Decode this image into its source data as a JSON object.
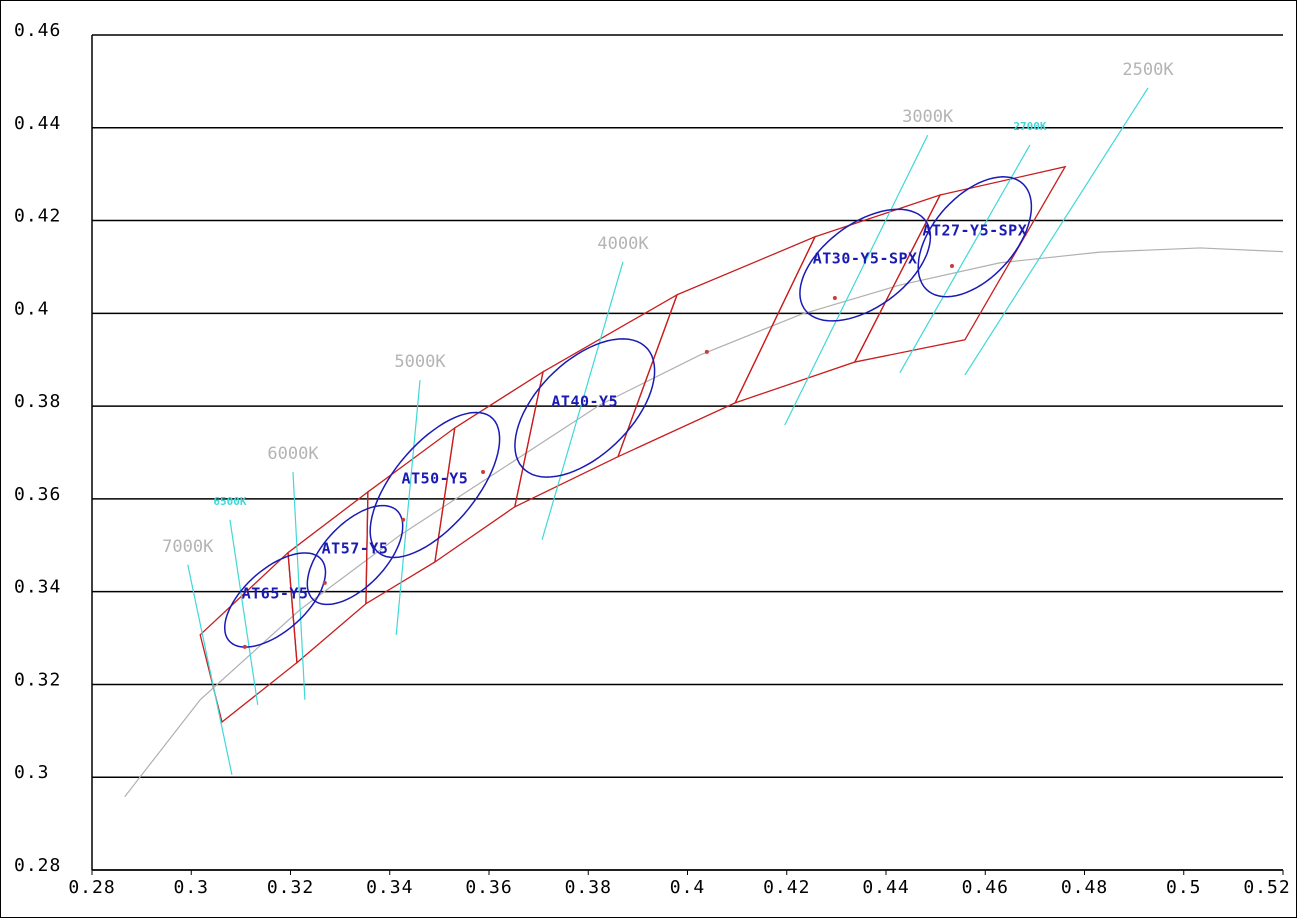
{
  "chart_data": {
    "type": "chromaticity",
    "xlim": [
      0.28,
      0.52
    ],
    "ylim": [
      0.28,
      0.46
    ],
    "xticks": [
      0.28,
      0.3,
      0.32,
      0.34,
      0.36,
      0.38,
      0.4,
      0.42,
      0.44,
      0.46,
      0.48,
      0.5,
      0.52
    ],
    "yticks": [
      0.28,
      0.3,
      0.32,
      0.34,
      0.36,
      0.38,
      0.4,
      0.42,
      0.44,
      0.46
    ],
    "grid": true,
    "planckian": {
      "color": "#b0b0b0",
      "x": [
        0.2866,
        0.3018,
        0.3219,
        0.3421,
        0.3622,
        0.3824,
        0.4025,
        0.4227,
        0.4428,
        0.463,
        0.4831,
        0.5033,
        0.52
      ],
      "y": [
        0.2958,
        0.3167,
        0.3361,
        0.3522,
        0.3662,
        0.3803,
        0.391,
        0.3997,
        0.4061,
        0.4109,
        0.4132,
        0.4141,
        0.4133
      ]
    },
    "isotherms": [
      {
        "label": "7000K",
        "color": "#40d8d8",
        "label_color": "#b4b4b4",
        "x": [
          0.2993,
          0.3082
        ],
        "y": [
          0.3458,
          0.3005
        ]
      },
      {
        "label": "6500K",
        "color": "#40d8d8",
        "label_color": "#40d8d8",
        "x": [
          0.3078,
          0.3134
        ],
        "y": [
          0.3555,
          0.3156
        ]
      },
      {
        "label": "6000K",
        "color": "#40d8d8",
        "label_color": "#b4b4b4",
        "x": [
          0.3205,
          0.3229
        ],
        "y": [
          0.3658,
          0.3167
        ]
      },
      {
        "label": "5000K",
        "color": "#40d8d8",
        "label_color": "#b4b4b4",
        "x": [
          0.3461,
          0.3413
        ],
        "y": [
          0.3856,
          0.3307
        ]
      },
      {
        "label": "4000K",
        "color": "#40d8d8",
        "label_color": "#b4b4b4",
        "x": [
          0.387,
          0.3707
        ],
        "y": [
          0.4111,
          0.3512
        ]
      },
      {
        "label": "3000K",
        "color": "#40d8d8",
        "label_color": "#b4b4b4",
        "x": [
          0.4484,
          0.4196
        ],
        "y": [
          0.4384,
          0.3759
        ]
      },
      {
        "label": "2700K",
        "color": "#40d8d8",
        "label_color": "#40d8d8",
        "x": [
          0.469,
          0.4428
        ],
        "y": [
          0.4363,
          0.3872
        ]
      },
      {
        "label": "2500K",
        "color": "#40d8d8",
        "label_color": "#b4b4b4",
        "x": [
          0.4928,
          0.4559
        ],
        "y": [
          0.4486,
          0.3867
        ]
      }
    ],
    "bins": [
      {
        "color": "#c81e1e",
        "x": [
          0.3018,
          0.3195,
          0.3213,
          0.3062
        ],
        "y": [
          0.3307,
          0.3484,
          0.3247,
          0.3119
        ]
      },
      {
        "color": "#c81e1e",
        "x": [
          0.3195,
          0.3356,
          0.3352,
          0.3213
        ],
        "y": [
          0.3484,
          0.3615,
          0.3374,
          0.3247
        ]
      },
      {
        "color": "#c81e1e",
        "x": [
          0.3356,
          0.3531,
          0.3491,
          0.3352
        ],
        "y": [
          0.3615,
          0.3753,
          0.3464,
          0.3374
        ]
      },
      {
        "color": "#c81e1e",
        "x": [
          0.3531,
          0.3709,
          0.3652,
          0.3491
        ],
        "y": [
          0.3753,
          0.3874,
          0.3583,
          0.3464
        ]
      },
      {
        "color": "#c81e1e",
        "x": [
          0.3709,
          0.3979,
          0.386,
          0.3652
        ],
        "y": [
          0.3874,
          0.404,
          0.3691,
          0.3583
        ]
      },
      {
        "color": "#c81e1e",
        "x": [
          0.3979,
          0.4257,
          0.4096,
          0.386
        ],
        "y": [
          0.404,
          0.4165,
          0.3807,
          0.3691
        ]
      },
      {
        "color": "#c81e1e",
        "x": [
          0.4257,
          0.4509,
          0.4337,
          0.4096
        ],
        "y": [
          0.4165,
          0.4255,
          0.3895,
          0.3807
        ]
      },
      {
        "color": "#c81e1e",
        "x": [
          0.4509,
          0.4761,
          0.4559,
          0.4337
        ],
        "y": [
          0.4255,
          0.4316,
          0.3943,
          0.3895
        ]
      }
    ],
    "ellipses": [
      {
        "label": "AT65-Y5",
        "color": "#1a1ab4",
        "cx": 0.3169,
        "cy": 0.3382,
        "a": 0.0128,
        "b": 0.0065,
        "angle": 45
      },
      {
        "label": "AT57-Y5",
        "color": "#1a1ab4",
        "cx": 0.333,
        "cy": 0.3479,
        "a": 0.0128,
        "b": 0.0065,
        "angle": 50
      },
      {
        "label": "AT50-Y5",
        "color": "#1a1ab4",
        "cx": 0.3491,
        "cy": 0.363,
        "a": 0.0185,
        "b": 0.0085,
        "angle": 53
      },
      {
        "label": "AT40-Y5",
        "color": "#1a1ab4",
        "cx": 0.3793,
        "cy": 0.3796,
        "a": 0.018,
        "b": 0.0098,
        "angle": 48
      },
      {
        "label": "AT30-Y5-SPX",
        "color": "#1a1ab4",
        "cx": 0.4358,
        "cy": 0.4104,
        "a": 0.0155,
        "b": 0.0088,
        "angle": 40
      },
      {
        "label": "AT27-Y5-SPX",
        "color": "#1a1ab4",
        "cx": 0.4579,
        "cy": 0.4165,
        "a": 0.015,
        "b": 0.0085,
        "angle": 52
      }
    ],
    "centers": {
      "color": "#c83c3c",
      "x": [
        0.3108,
        0.3269,
        0.3427,
        0.3588,
        0.4039,
        0.4297,
        0.4533
      ],
      "y": [
        0.3281,
        0.3419,
        0.3555,
        0.3658,
        0.3917,
        0.4033,
        0.4102
      ]
    }
  }
}
